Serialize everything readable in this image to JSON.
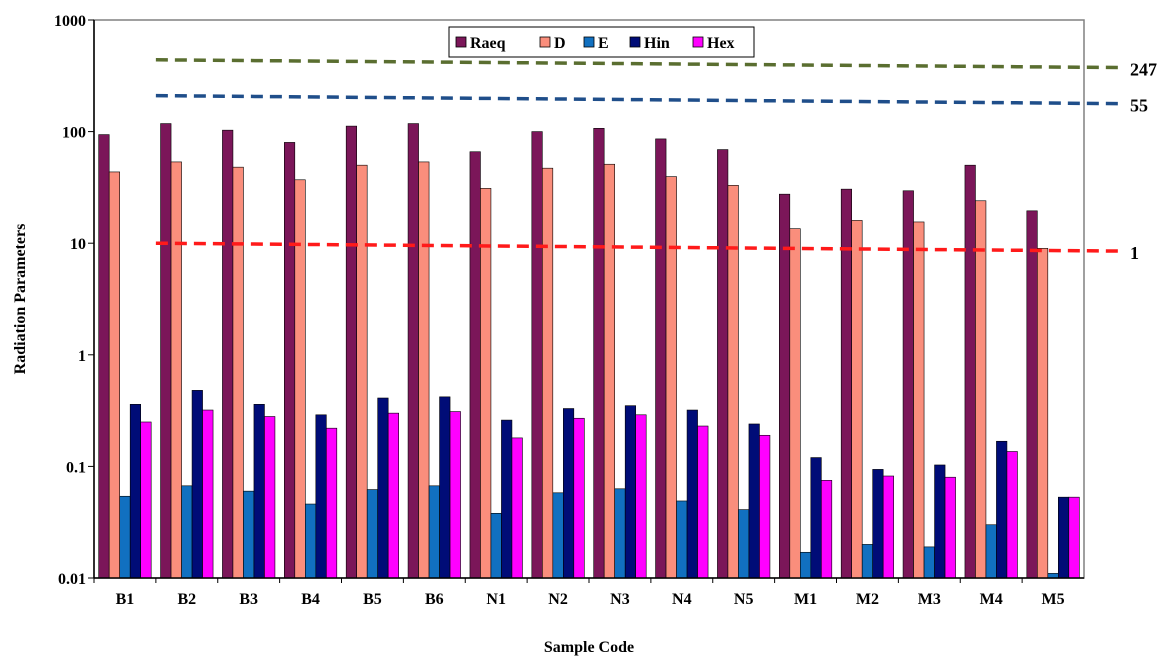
{
  "chart_data": {
    "type": "bar",
    "xlabel": "Sample Code",
    "ylabel": "Radiation Parameters",
    "yscale": "log",
    "ylim": [
      0.01,
      1000
    ],
    "yticks": [
      "0.01",
      "0.1",
      "1",
      "10",
      "100",
      "1000"
    ],
    "grid": false,
    "legend_position": "top-center",
    "categories": [
      "B1",
      "B2",
      "B3",
      "B4",
      "B5",
      "B6",
      "N1",
      "N2",
      "N3",
      "N4",
      "N5",
      "M1",
      "M2",
      "M3",
      "M4",
      "M5"
    ],
    "series": [
      {
        "name": "Raeq",
        "color": "#7b1659",
        "values": [
          94,
          118,
          103,
          80,
          112,
          118,
          66,
          100,
          107,
          86,
          69,
          27.5,
          30.5,
          29.5,
          50,
          19.5
        ]
      },
      {
        "name": "D",
        "color": "#fa8e7c",
        "values": [
          43.5,
          53.5,
          48,
          37,
          50,
          53.5,
          31,
          47,
          51,
          39.5,
          33,
          13.5,
          16,
          15.5,
          24,
          9
        ]
      },
      {
        "name": "E",
        "color": "#1170c0",
        "values": [
          0.054,
          0.067,
          0.06,
          0.046,
          0.062,
          0.067,
          0.038,
          0.058,
          0.063,
          0.049,
          0.041,
          0.017,
          0.02,
          0.019,
          0.03,
          0.011
        ]
      },
      {
        "name": "Hin",
        "color": "#000c77",
        "values": [
          0.36,
          0.48,
          0.36,
          0.29,
          0.41,
          0.42,
          0.26,
          0.33,
          0.35,
          0.32,
          0.24,
          0.12,
          0.094,
          0.103,
          0.168,
          0.053
        ]
      },
      {
        "name": "Hex",
        "color": "#ff00ff",
        "values": [
          0.25,
          0.32,
          0.28,
          0.22,
          0.3,
          0.31,
          0.18,
          0.27,
          0.29,
          0.23,
          0.19,
          0.075,
          0.082,
          0.08,
          0.136,
          0.053
        ]
      }
    ],
    "reference_lines": [
      {
        "label": "247",
        "color": "#5a6e30",
        "start": 440,
        "end": 375
      },
      {
        "label": "55",
        "color": "#1f4e8a",
        "start": 210,
        "end": 178
      },
      {
        "label": "1",
        "color": "#ff1a1a",
        "start": 10,
        "end": 8.5
      }
    ]
  }
}
